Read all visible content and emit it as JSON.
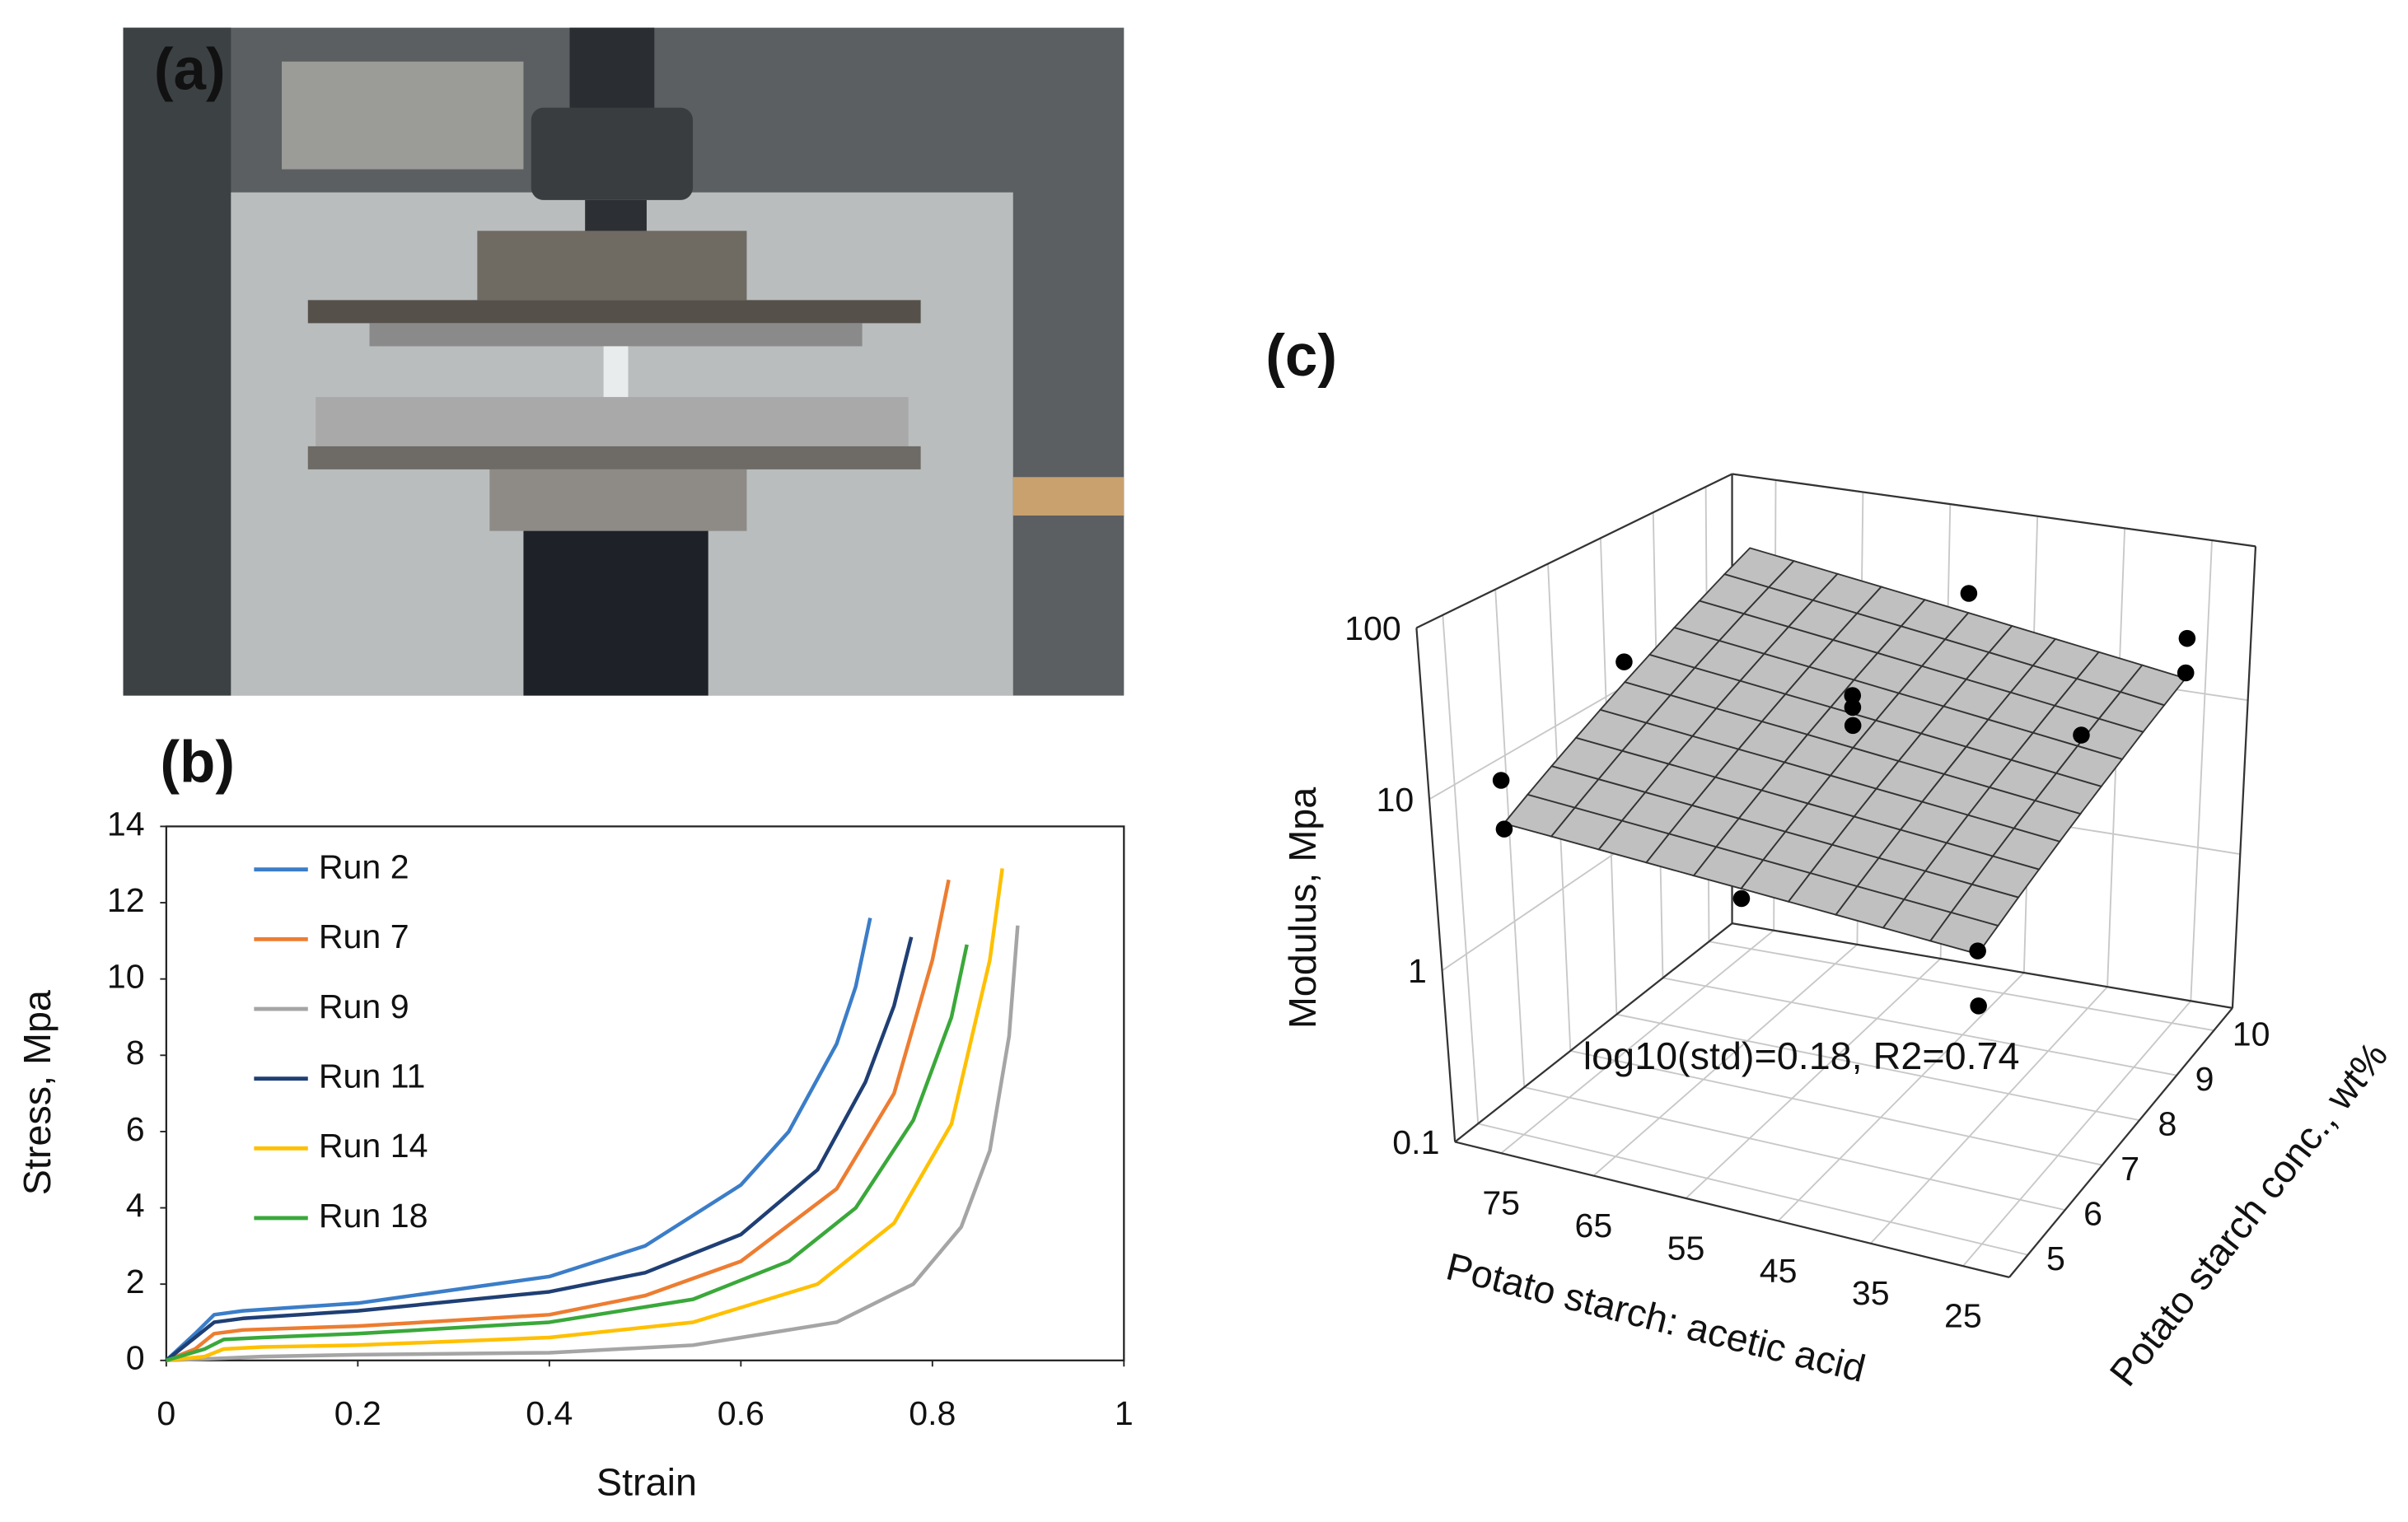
{
  "panel_labels": [
    "(a)",
    "(b)",
    "(c)"
  ],
  "chart_data": [
    {
      "type": "line",
      "xlabel": "Strain",
      "ylabel": "Stress, Mpa",
      "xlim": [
        0,
        1
      ],
      "ylim": [
        0,
        14
      ],
      "xticks": [
        0,
        0.2,
        0.4,
        0.6,
        0.8,
        1
      ],
      "yticks": [
        0,
        2,
        4,
        6,
        8,
        10,
        12,
        14
      ],
      "legend": "upper left",
      "series": [
        {
          "name": "Run 2",
          "color": "#3b7dc8",
          "x": [
            0,
            0.03,
            0.05,
            0.08,
            0.2,
            0.4,
            0.5,
            0.6,
            0.65,
            0.7,
            0.72,
            0.735
          ],
          "values": [
            0,
            0.7,
            1.2,
            1.3,
            1.5,
            2.2,
            3.0,
            4.6,
            6.0,
            8.3,
            9.8,
            11.6
          ]
        },
        {
          "name": "Run 7",
          "color": "#ed7d31",
          "x": [
            0,
            0.03,
            0.05,
            0.08,
            0.2,
            0.4,
            0.5,
            0.6,
            0.7,
            0.76,
            0.8,
            0.817
          ],
          "values": [
            0,
            0.3,
            0.7,
            0.8,
            0.9,
            1.2,
            1.7,
            2.6,
            4.5,
            7.0,
            10.5,
            12.6
          ]
        },
        {
          "name": "Run 9",
          "color": "#a5a5a5",
          "x": [
            0,
            0.05,
            0.1,
            0.2,
            0.4,
            0.55,
            0.7,
            0.78,
            0.83,
            0.86,
            0.88,
            0.889
          ],
          "values": [
            0,
            0.05,
            0.1,
            0.15,
            0.2,
            0.4,
            1.0,
            2.0,
            3.5,
            5.5,
            8.5,
            11.4
          ]
        },
        {
          "name": "Run 11",
          "color": "#1f3f74",
          "x": [
            0,
            0.03,
            0.05,
            0.08,
            0.2,
            0.4,
            0.5,
            0.6,
            0.68,
            0.73,
            0.76,
            0.778
          ],
          "values": [
            0,
            0.6,
            1.0,
            1.1,
            1.3,
            1.8,
            2.3,
            3.3,
            5.0,
            7.3,
            9.3,
            11.1
          ]
        },
        {
          "name": "Run 14",
          "color": "#ffc000",
          "x": [
            0,
            0.04,
            0.06,
            0.1,
            0.2,
            0.4,
            0.55,
            0.68,
            0.76,
            0.82,
            0.86,
            0.873
          ],
          "values": [
            0,
            0.1,
            0.3,
            0.35,
            0.4,
            0.6,
            1.0,
            2.0,
            3.6,
            6.2,
            10.5,
            12.9
          ]
        },
        {
          "name": "Run 18",
          "color": "#3aa83a",
          "x": [
            0,
            0.04,
            0.06,
            0.1,
            0.2,
            0.4,
            0.55,
            0.65,
            0.72,
            0.78,
            0.82,
            0.836
          ],
          "values": [
            0,
            0.3,
            0.55,
            0.6,
            0.7,
            1.0,
            1.6,
            2.6,
            4.0,
            6.3,
            9.0,
            10.9
          ]
        }
      ]
    },
    {
      "type": "scatter3d",
      "xlabel": "Potato starch: acetic acid",
      "ylabel": "Potato starch conc., wt%",
      "zlabel": "Modulus, Mpa",
      "annotation": "log10(std)=0.18, R2=0.74",
      "xlim": [
        80,
        20
      ],
      "ylim": [
        4.5,
        10.5
      ],
      "zlim": [
        0.1,
        100
      ],
      "zscale": "log",
      "xticks": [
        75,
        65,
        55,
        45,
        35,
        25
      ],
      "yticks": [
        5,
        6,
        7,
        8,
        9,
        10
      ],
      "zticks": [
        0.1,
        1,
        10,
        100
      ],
      "x": [
        75,
        75,
        75,
        50,
        50,
        50,
        50,
        50,
        25,
        25,
        25,
        25,
        25
      ],
      "y": [
        5,
        5,
        7.5,
        5,
        7.5,
        7.5,
        7.5,
        10,
        7.5,
        5,
        5,
        10,
        10
      ],
      "z": [
        12.2,
        6.3,
        23,
        5.0,
        26,
        22,
        17,
        36,
        27,
        5.0,
        2.4,
        30,
        18
      ],
      "color": "#000000",
      "surface": {
        "x": [
          75,
          25
        ],
        "y": [
          5,
          10
        ],
        "z": [
          [
            6.8,
            4.8
          ],
          [
            43.6,
            16.6
          ]
        ],
        "color": "#c0c0c0"
      }
    }
  ]
}
